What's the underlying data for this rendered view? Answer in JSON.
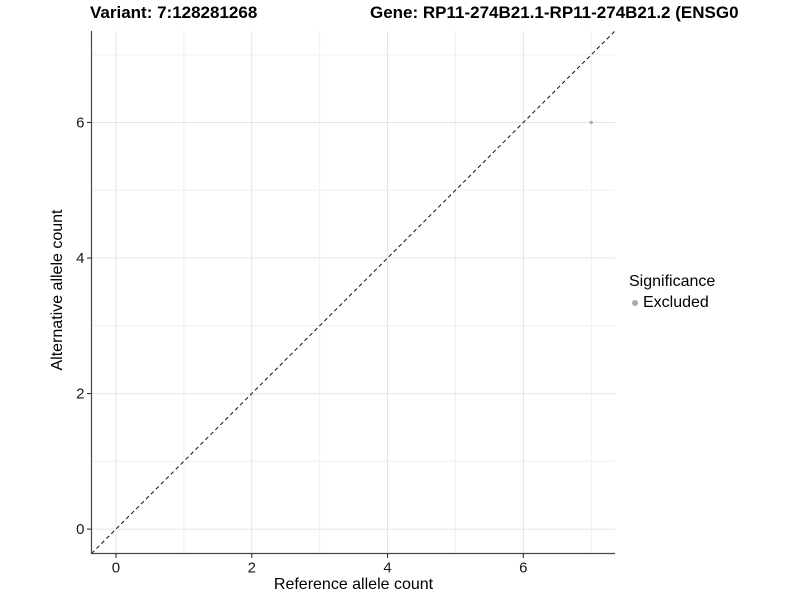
{
  "header": {
    "variant_title": "Variant: 7:128281268",
    "gene_title": "Gene: RP11-274B21.1-RP11-274B21.2 (ENSG0"
  },
  "legend": {
    "title": "Significance",
    "items": [
      {
        "label": "Excluded",
        "color": "#aaaaaa"
      }
    ]
  },
  "chart_data": {
    "type": "scatter",
    "title_left": "Variant: 7:128281268",
    "title_right": "Gene: RP11-274B21.1-RP11-274B21.2 (ENSG0",
    "xlabel": "Reference allele count",
    "ylabel": "Alternative allele count",
    "xlim": [
      -0.36,
      7.35
    ],
    "ylim": [
      -0.36,
      7.35
    ],
    "x_major_ticks": [
      0,
      2,
      4,
      6
    ],
    "x_minor_ticks": [
      1,
      3,
      5,
      7
    ],
    "y_major_ticks": [
      0,
      2,
      4,
      6
    ],
    "y_minor_ticks": [
      1,
      3,
      5,
      7
    ],
    "grid": true,
    "legend_position": "right",
    "reference_line": {
      "type": "identity",
      "slope": 1,
      "intercept": 0,
      "style": "dashed"
    },
    "series": [
      {
        "name": "Excluded",
        "color": "#aaaaaa",
        "points": [
          {
            "x": 7,
            "y": 6
          }
        ]
      }
    ],
    "colors": {
      "background": "#ffffff",
      "grid_major": "#e4e4e4",
      "grid_minor": "#f0f0f0",
      "axis_line": "#474747",
      "tick_mark": "#333333",
      "tick_label": "#1a1a1a",
      "dashed_line": "#111111"
    }
  }
}
